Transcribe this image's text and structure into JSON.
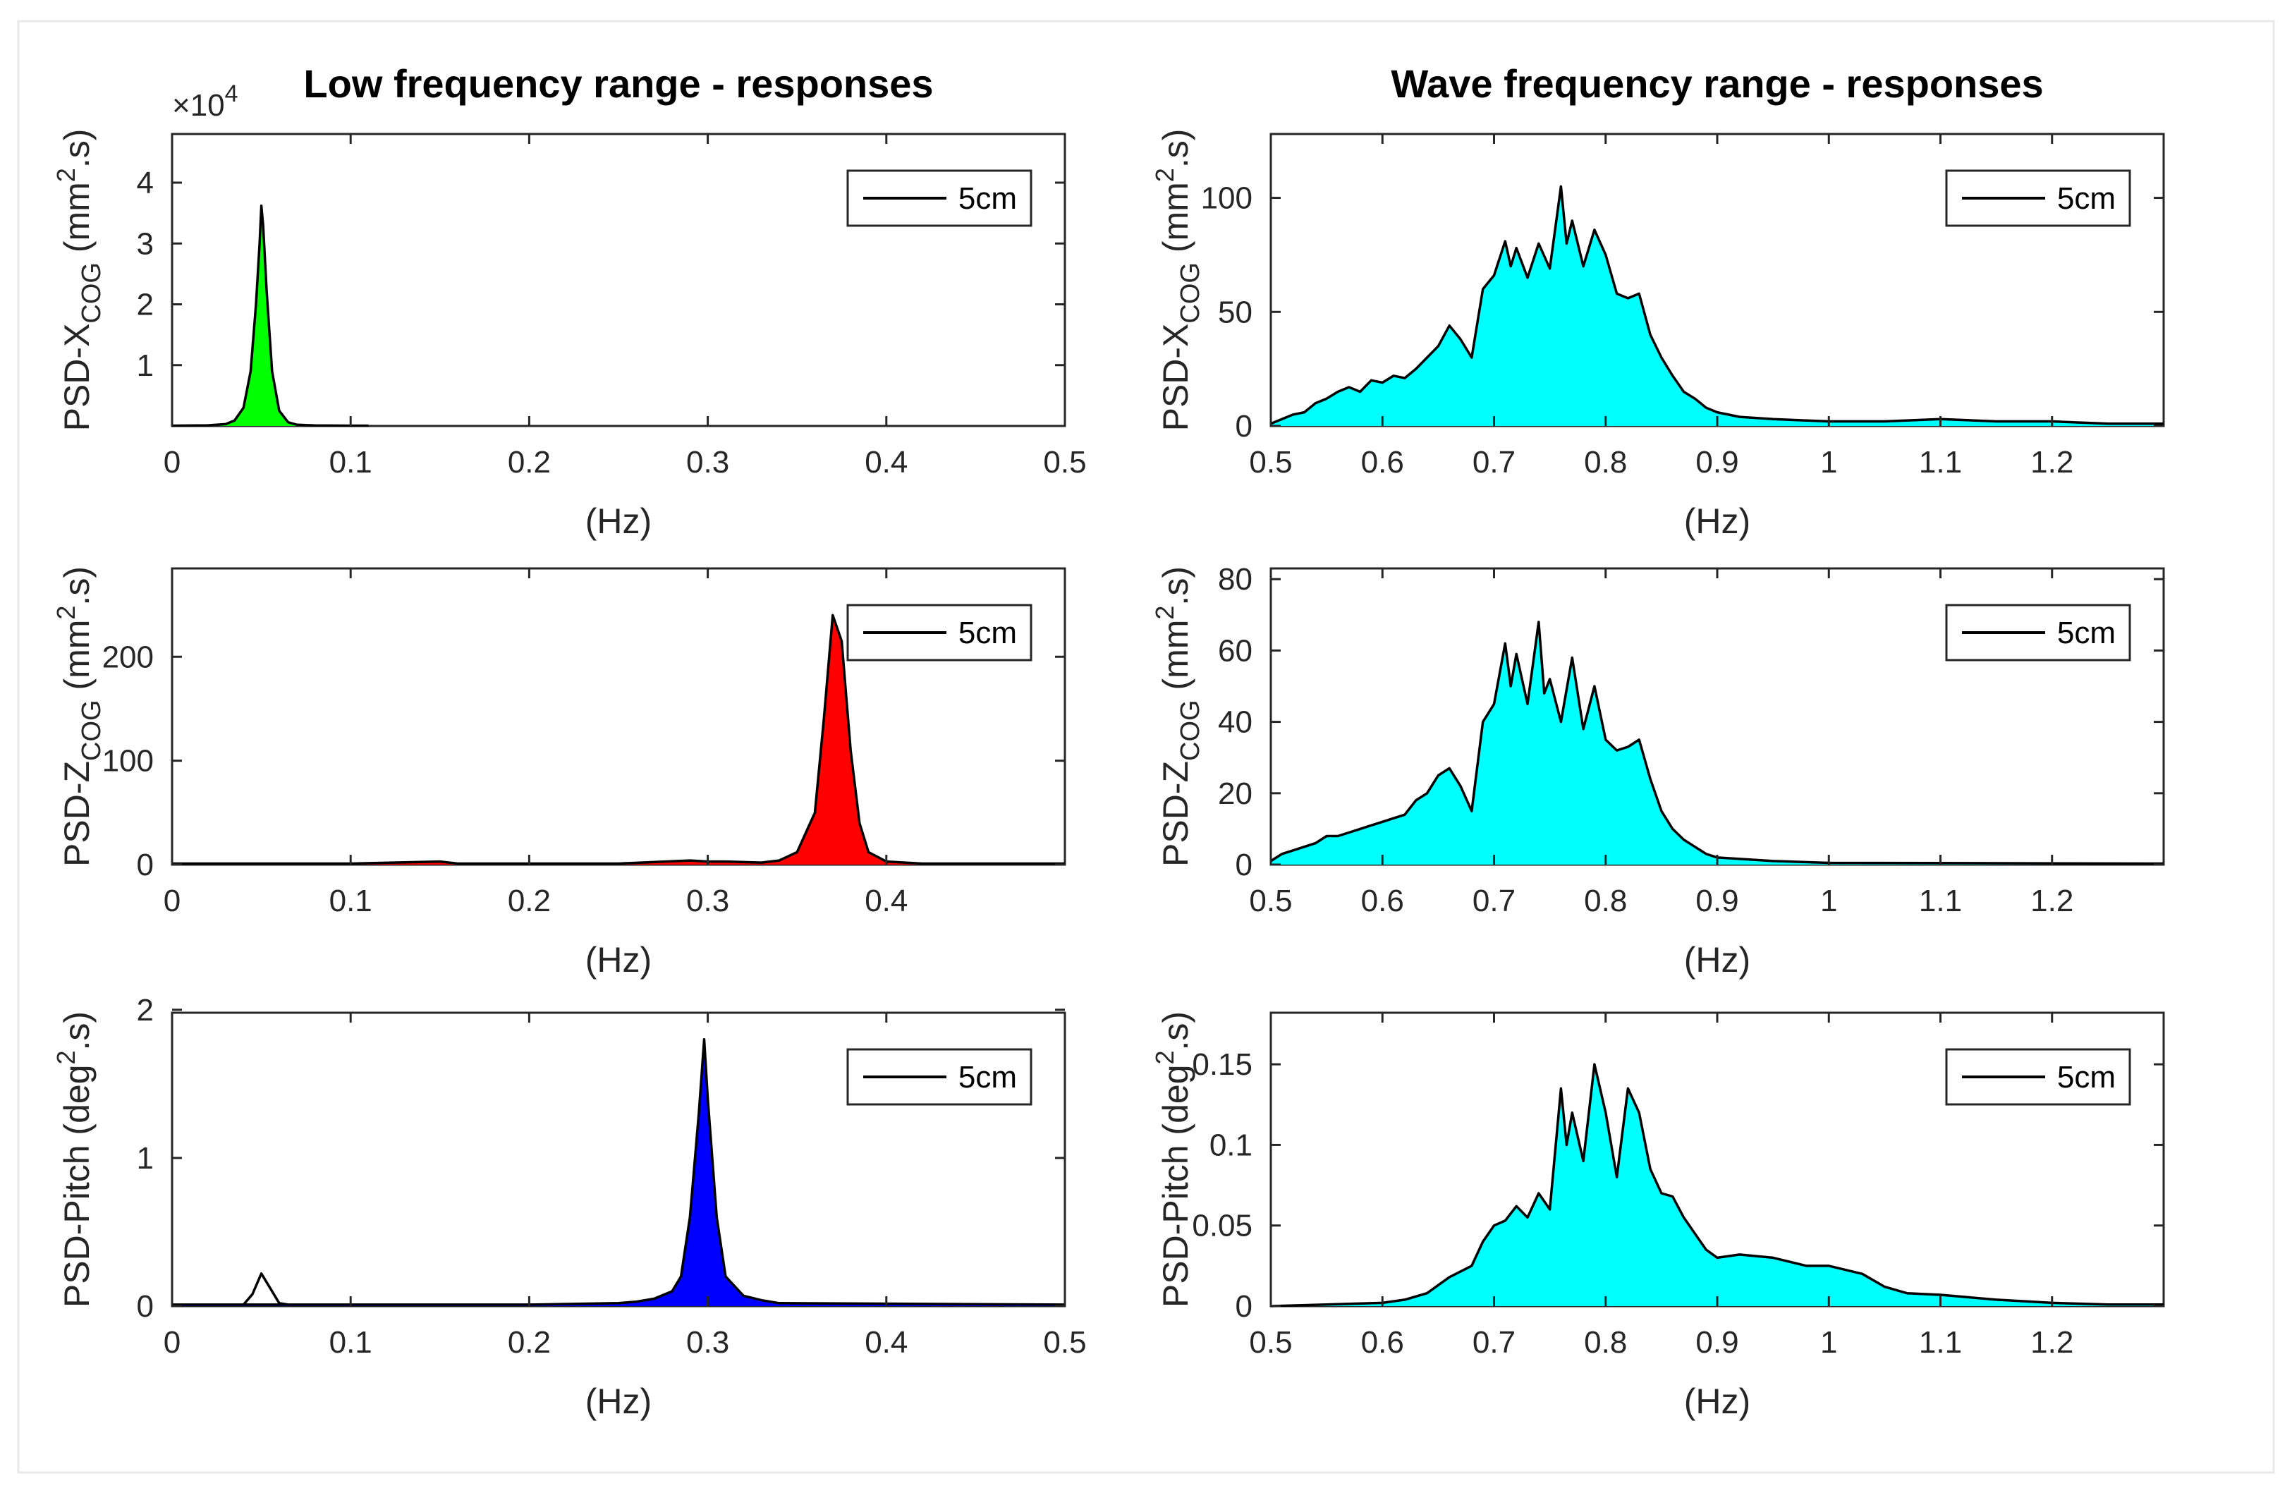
{
  "chart_data": [
    {
      "id": "x-low",
      "type": "area",
      "title": "Low frequency range - responses",
      "xlabel": "(Hz)",
      "ylabel": {
        "main": "PSD-X",
        "sub": "COG",
        "unit": "(mm",
        "sup": "2",
        "tail": ".s)"
      },
      "xlim": [
        0,
        0.5
      ],
      "ylim": [
        0,
        4.8
      ],
      "xticks": [
        0,
        0.1,
        0.2,
        0.3,
        0.4,
        0.5
      ],
      "xtick_labels": [
        "0",
        "0.1",
        "0.2",
        "0.3",
        "0.4",
        "0.5"
      ],
      "yticks": [
        1,
        2,
        3,
        4
      ],
      "ytick_labels": [
        "1",
        "2",
        "3",
        "4"
      ],
      "y_exponent": {
        "prefix": "×10",
        "power": "4"
      },
      "fill_color": "#00ff00",
      "legend": "5cm",
      "legend_position": "top-right",
      "points": [
        [
          0,
          0.005
        ],
        [
          0.02,
          0.01
        ],
        [
          0.03,
          0.03
        ],
        [
          0.035,
          0.09
        ],
        [
          0.04,
          0.3
        ],
        [
          0.044,
          0.9
        ],
        [
          0.047,
          2.0
        ],
        [
          0.049,
          3.0
        ],
        [
          0.05,
          3.62
        ],
        [
          0.051,
          3.3
        ],
        [
          0.053,
          2.2
        ],
        [
          0.056,
          0.9
        ],
        [
          0.06,
          0.25
        ],
        [
          0.065,
          0.06
        ],
        [
          0.07,
          0.02
        ],
        [
          0.08,
          0.008
        ],
        [
          0.1,
          0.005
        ],
        [
          0.11,
          0.005
        ]
      ]
    },
    {
      "id": "x-wave",
      "type": "area",
      "title": "Wave frequency range - responses",
      "xlabel": "(Hz)",
      "ylabel": {
        "main": "PSD-X",
        "sub": "COG",
        "unit": "(mm",
        "sup": "2",
        "tail": ".s)"
      },
      "xlim": [
        0.5,
        1.3
      ],
      "ylim": [
        0,
        128
      ],
      "xticks": [
        0.5,
        0.6,
        0.7,
        0.8,
        0.9,
        1,
        1.1,
        1.2
      ],
      "xtick_labels": [
        "0.5",
        "0.6",
        "0.7",
        "0.8",
        "0.9",
        "1",
        "1.1",
        "1.2"
      ],
      "yticks": [
        0,
        50,
        100
      ],
      "ytick_labels": [
        "0",
        "50",
        "100"
      ],
      "fill_color": "#00ffff",
      "legend": "5cm",
      "legend_position": "top-right",
      "points": [
        [
          0.5,
          1
        ],
        [
          0.51,
          3
        ],
        [
          0.52,
          5
        ],
        [
          0.53,
          6
        ],
        [
          0.54,
          10
        ],
        [
          0.55,
          12
        ],
        [
          0.56,
          15
        ],
        [
          0.57,
          17
        ],
        [
          0.58,
          15
        ],
        [
          0.59,
          20
        ],
        [
          0.6,
          19
        ],
        [
          0.61,
          22
        ],
        [
          0.62,
          21
        ],
        [
          0.63,
          25
        ],
        [
          0.64,
          30
        ],
        [
          0.65,
          35
        ],
        [
          0.66,
          44
        ],
        [
          0.67,
          38
        ],
        [
          0.68,
          30
        ],
        [
          0.69,
          60
        ],
        [
          0.7,
          66
        ],
        [
          0.71,
          81
        ],
        [
          0.715,
          70
        ],
        [
          0.72,
          78
        ],
        [
          0.73,
          65
        ],
        [
          0.74,
          80
        ],
        [
          0.75,
          69
        ],
        [
          0.76,
          105
        ],
        [
          0.765,
          80
        ],
        [
          0.77,
          90
        ],
        [
          0.78,
          70
        ],
        [
          0.79,
          86
        ],
        [
          0.8,
          75
        ],
        [
          0.81,
          58
        ],
        [
          0.82,
          56
        ],
        [
          0.83,
          58
        ],
        [
          0.84,
          40
        ],
        [
          0.85,
          30
        ],
        [
          0.86,
          22
        ],
        [
          0.87,
          15
        ],
        [
          0.88,
          12
        ],
        [
          0.89,
          8
        ],
        [
          0.9,
          6
        ],
        [
          0.92,
          4
        ],
        [
          0.95,
          3
        ],
        [
          1.0,
          2
        ],
        [
          1.05,
          2
        ],
        [
          1.1,
          3
        ],
        [
          1.15,
          2
        ],
        [
          1.2,
          2
        ],
        [
          1.25,
          1
        ],
        [
          1.3,
          1
        ]
      ]
    },
    {
      "id": "z-low",
      "type": "area",
      "xlabel": "(Hz)",
      "ylabel": {
        "main": "PSD-Z",
        "sub": "COG",
        "unit": "(mm",
        "sup": "2",
        "tail": ".s)"
      },
      "xlim": [
        0,
        0.5
      ],
      "ylim": [
        0,
        285
      ],
      "xticks": [
        0,
        0.1,
        0.2,
        0.3,
        0.4
      ],
      "xtick_labels": [
        "0",
        "0.1",
        "0.2",
        "0.3",
        "0.4"
      ],
      "yticks": [
        0,
        100,
        200
      ],
      "ytick_labels": [
        "0",
        "100",
        "200"
      ],
      "fill_color": "#ff0000",
      "legend": "5cm",
      "legend_position": "top-right",
      "points": [
        [
          0,
          1
        ],
        [
          0.1,
          1
        ],
        [
          0.15,
          3
        ],
        [
          0.16,
          1
        ],
        [
          0.25,
          1
        ],
        [
          0.29,
          4
        ],
        [
          0.3,
          3
        ],
        [
          0.31,
          3
        ],
        [
          0.33,
          2
        ],
        [
          0.34,
          4
        ],
        [
          0.35,
          12
        ],
        [
          0.36,
          50
        ],
        [
          0.365,
          140
        ],
        [
          0.37,
          240
        ],
        [
          0.375,
          215
        ],
        [
          0.38,
          110
        ],
        [
          0.385,
          40
        ],
        [
          0.39,
          12
        ],
        [
          0.4,
          3
        ],
        [
          0.42,
          1
        ],
        [
          0.5,
          1
        ]
      ]
    },
    {
      "id": "z-wave",
      "type": "area",
      "xlabel": "(Hz)",
      "ylabel": {
        "main": "PSD-Z",
        "sub": "COG",
        "unit": "(mm",
        "sup": "2",
        "tail": ".s)"
      },
      "xlim": [
        0.5,
        1.3
      ],
      "ylim": [
        0,
        83
      ],
      "xticks": [
        0.5,
        0.6,
        0.7,
        0.8,
        0.9,
        1,
        1.1,
        1.2
      ],
      "xtick_labels": [
        "0.5",
        "0.6",
        "0.7",
        "0.8",
        "0.9",
        "1",
        "1.1",
        "1.2"
      ],
      "yticks": [
        0,
        20,
        40,
        60,
        80
      ],
      "ytick_labels": [
        "0",
        "20",
        "40",
        "60",
        "80"
      ],
      "fill_color": "#00ffff",
      "legend": "5cm",
      "legend_position": "top-right",
      "points": [
        [
          0.5,
          1
        ],
        [
          0.51,
          3
        ],
        [
          0.52,
          4
        ],
        [
          0.53,
          5
        ],
        [
          0.54,
          6
        ],
        [
          0.55,
          8
        ],
        [
          0.56,
          8
        ],
        [
          0.57,
          9
        ],
        [
          0.58,
          10
        ],
        [
          0.59,
          11
        ],
        [
          0.6,
          12
        ],
        [
          0.61,
          13
        ],
        [
          0.62,
          14
        ],
        [
          0.63,
          18
        ],
        [
          0.64,
          20
        ],
        [
          0.65,
          25
        ],
        [
          0.66,
          27
        ],
        [
          0.67,
          22
        ],
        [
          0.68,
          15
        ],
        [
          0.69,
          40
        ],
        [
          0.7,
          45
        ],
        [
          0.71,
          62
        ],
        [
          0.715,
          50
        ],
        [
          0.72,
          59
        ],
        [
          0.73,
          45
        ],
        [
          0.74,
          68
        ],
        [
          0.745,
          48
        ],
        [
          0.75,
          52
        ],
        [
          0.76,
          40
        ],
        [
          0.77,
          58
        ],
        [
          0.78,
          38
        ],
        [
          0.79,
          50
        ],
        [
          0.8,
          35
        ],
        [
          0.81,
          32
        ],
        [
          0.82,
          33
        ],
        [
          0.83,
          35
        ],
        [
          0.84,
          24
        ],
        [
          0.85,
          15
        ],
        [
          0.86,
          10
        ],
        [
          0.87,
          7
        ],
        [
          0.88,
          5
        ],
        [
          0.89,
          3
        ],
        [
          0.9,
          2
        ],
        [
          0.95,
          1
        ],
        [
          1.0,
          0.5
        ],
        [
          1.3,
          0.3
        ]
      ]
    },
    {
      "id": "pitch-low",
      "type": "area",
      "xlabel": "(Hz)",
      "ylabel": {
        "main": "PSD-Pitch",
        "sub": "",
        "unit": "(deg",
        "sup": "2",
        "tail": ".s)"
      },
      "xlim": [
        0,
        0.5
      ],
      "ylim": [
        0,
        1.98
      ],
      "xticks": [
        0,
        0.1,
        0.2,
        0.3,
        0.4,
        0.5
      ],
      "xtick_labels": [
        "0",
        "0.1",
        "0.2",
        "0.3",
        "0.4",
        "0.5"
      ],
      "yticks": [
        0,
        1,
        2
      ],
      "ytick_labels": [
        "0",
        "1",
        "2"
      ],
      "fill_color": "#0000ff",
      "unfilled_peak": [
        [
          0.04,
          0.01
        ],
        [
          0.045,
          0.08
        ],
        [
          0.05,
          0.22
        ],
        [
          0.055,
          0.12
        ],
        [
          0.06,
          0.02
        ],
        [
          0.065,
          0.01
        ]
      ],
      "legend": "5cm",
      "legend_position": "top-right",
      "points": [
        [
          0,
          0.01
        ],
        [
          0.1,
          0.01
        ],
        [
          0.2,
          0.01
        ],
        [
          0.25,
          0.02
        ],
        [
          0.26,
          0.03
        ],
        [
          0.27,
          0.05
        ],
        [
          0.28,
          0.1
        ],
        [
          0.285,
          0.2
        ],
        [
          0.29,
          0.6
        ],
        [
          0.295,
          1.3
        ],
        [
          0.298,
          1.8
        ],
        [
          0.3,
          1.4
        ],
        [
          0.305,
          0.6
        ],
        [
          0.31,
          0.2
        ],
        [
          0.32,
          0.07
        ],
        [
          0.33,
          0.04
        ],
        [
          0.34,
          0.02
        ],
        [
          0.5,
          0.01
        ]
      ]
    },
    {
      "id": "pitch-wave",
      "type": "area",
      "xlabel": "(Hz)",
      "ylabel": {
        "main": "PSD-Pitch",
        "sub": "",
        "unit": "(deg",
        "sup": "2",
        "tail": ".s)"
      },
      "xlim": [
        0.5,
        1.3
      ],
      "ylim": [
        0,
        0.182
      ],
      "xticks": [
        0.5,
        0.6,
        0.7,
        0.8,
        0.9,
        1,
        1.1,
        1.2
      ],
      "xtick_labels": [
        "0.5",
        "0.6",
        "0.7",
        "0.8",
        "0.9",
        "1",
        "1.1",
        "1.2"
      ],
      "yticks": [
        0,
        0.05,
        0.1,
        0.15
      ],
      "ytick_labels": [
        "0",
        "0.05",
        "0.1",
        "0.15"
      ],
      "fill_color": "#00ffff",
      "legend": "5cm",
      "legend_position": "top-right",
      "points": [
        [
          0.5,
          0
        ],
        [
          0.55,
          0.001
        ],
        [
          0.6,
          0.002
        ],
        [
          0.62,
          0.004
        ],
        [
          0.64,
          0.008
        ],
        [
          0.66,
          0.018
        ],
        [
          0.68,
          0.025
        ],
        [
          0.69,
          0.04
        ],
        [
          0.7,
          0.05
        ],
        [
          0.71,
          0.053
        ],
        [
          0.72,
          0.062
        ],
        [
          0.73,
          0.055
        ],
        [
          0.74,
          0.07
        ],
        [
          0.75,
          0.06
        ],
        [
          0.76,
          0.135
        ],
        [
          0.765,
          0.1
        ],
        [
          0.77,
          0.12
        ],
        [
          0.78,
          0.09
        ],
        [
          0.79,
          0.15
        ],
        [
          0.8,
          0.12
        ],
        [
          0.81,
          0.08
        ],
        [
          0.82,
          0.135
        ],
        [
          0.83,
          0.12
        ],
        [
          0.84,
          0.085
        ],
        [
          0.85,
          0.07
        ],
        [
          0.86,
          0.068
        ],
        [
          0.87,
          0.055
        ],
        [
          0.88,
          0.045
        ],
        [
          0.89,
          0.035
        ],
        [
          0.9,
          0.03
        ],
        [
          0.92,
          0.032
        ],
        [
          0.95,
          0.03
        ],
        [
          0.98,
          0.025
        ],
        [
          1.0,
          0.025
        ],
        [
          1.03,
          0.02
        ],
        [
          1.05,
          0.012
        ],
        [
          1.07,
          0.008
        ],
        [
          1.1,
          0.007
        ],
        [
          1.15,
          0.004
        ],
        [
          1.2,
          0.002
        ],
        [
          1.25,
          0.001
        ],
        [
          1.3,
          0.001
        ]
      ]
    }
  ]
}
